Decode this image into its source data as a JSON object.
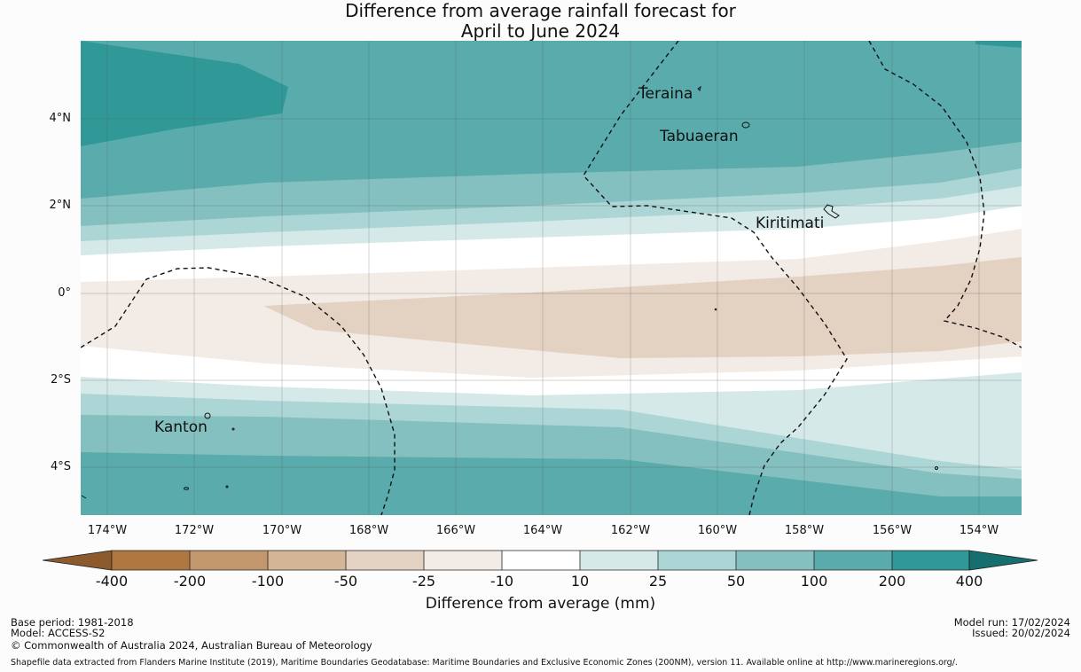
{
  "title": {
    "line1": "Difference from average rainfall forecast for",
    "line2": "April to June 2024"
  },
  "map": {
    "longitude_range": [
      -174.6,
      -153.2
    ],
    "latitude_range": [
      -5.1,
      5.8
    ],
    "x_ticks": [
      "174°W",
      "172°W",
      "170°W",
      "168°W",
      "166°W",
      "164°W",
      "162°W",
      "160°W",
      "158°W",
      "156°W",
      "154°W"
    ],
    "y_ticks": [
      "4°N",
      "2°N",
      "0°",
      "2°S",
      "4°S"
    ],
    "places": [
      {
        "name": "Teraina",
        "lon": -159.4,
        "lat": 4.7
      },
      {
        "name": "Tabuaeran",
        "lon": -159.3,
        "lat": 3.85
      },
      {
        "name": "Kiritimati",
        "lon": -157.4,
        "lat": 1.9
      },
      {
        "name": "Kanton",
        "lon": -171.7,
        "lat": -2.8
      }
    ]
  },
  "colorbar": {
    "label": "Difference from average (mm)",
    "ticks": [
      "-400",
      "-200",
      "-100",
      "-50",
      "-25",
      "-10",
      "10",
      "25",
      "50",
      "100",
      "200",
      "400"
    ],
    "colors": {
      "below_min": "#8c5a2c",
      "bin_-400_-200": "#b07840",
      "bin_-200_-100": "#c1976b",
      "bin_-100_-50": "#d4b595",
      "bin_-50_-25": "#e3d1c1",
      "bin_-25_-10": "#f3ece6",
      "bin_-10_10": "#ffffff",
      "bin_10_25": "#d5e9e8",
      "bin_25_50": "#acd6d5",
      "bin_50_100": "#84c0bf",
      "bin_100_200": "#5aabab",
      "bin_200_400": "#309998",
      "above_max": "#166f6e"
    }
  },
  "footer": {
    "base_period": "Base period: 1981-2018",
    "model": "Model: ACCESS-S2",
    "copyright": "© Commonwealth of Australia 2024, Australian Bureau of Meteorology",
    "model_run": "Model run: 17/02/2024",
    "issued": "Issued: 20/02/2024",
    "shapefile": "Shapefile data extracted from Flanders Marine Institute (2019), Maritime Boundaries Geodatabase: Maritime Boundaries and Exclusive Economic Zones (200NM), version 11. Available online at http://www.marineregions.org/."
  }
}
